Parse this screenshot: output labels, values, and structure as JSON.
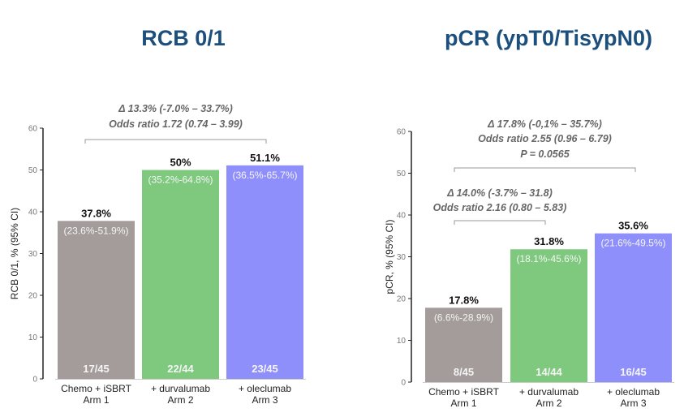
{
  "colors": {
    "title": "#1d4f7d",
    "arm1": "#a49b9b",
    "arm2": "#7fc97f",
    "arm3": "#8f8ffb"
  },
  "chart_data": [
    {
      "type": "bar",
      "title": "RCB 0/1",
      "ylabel": "RCB 0/1, % (95% CI)",
      "ylim": [
        0,
        60
      ],
      "yticks": [
        "0",
        "10",
        "20",
        "30",
        "40",
        "50",
        "60"
      ],
      "categories": [
        [
          "Chemo + iSBRT",
          "Arm 1"
        ],
        [
          "+ durvalumab",
          "Arm 2"
        ],
        [
          "+ oleclumab",
          "Arm 3"
        ]
      ],
      "values": [
        37.8,
        50,
        51.1
      ],
      "value_labels": [
        "37.8%",
        "50%",
        "51.1%"
      ],
      "ci_labels": [
        "(23.6%-51.9%)",
        "(35.2%-64.8%)",
        "(36.5%-65.7%)"
      ],
      "n_labels": [
        "17/45",
        "22/44",
        "23/45"
      ],
      "annotations": [
        {
          "from": 0,
          "to": 2,
          "lines": [
            "Δ 13.3% (-7.0% – 33.7%)",
            "Odds ratio 1.72 (0.74 – 3.99)"
          ]
        }
      ],
      "grid": false
    },
    {
      "type": "bar",
      "title": "pCR (ypT0/TisypN0)",
      "ylabel": "pCR, % (95% CI)",
      "ylim": [
        0,
        60
      ],
      "yticks": [
        "0",
        "10",
        "20",
        "30",
        "40",
        "50",
        "60"
      ],
      "categories": [
        [
          "Chemo + iSBRT",
          "Arm 1"
        ],
        [
          "+ durvalumab",
          "Arm 2"
        ],
        [
          "+ oleclumab",
          "Arm 3"
        ]
      ],
      "values": [
        17.8,
        31.8,
        35.6
      ],
      "value_labels": [
        "17.8%",
        "31.8%",
        "35.6%"
      ],
      "ci_labels": [
        "(6.6%-28.9%)",
        "(18.1%-45.6%)",
        "(21.6%-49.5%)"
      ],
      "n_labels": [
        "8/45",
        "14/44",
        "16/45"
      ],
      "annotations": [
        {
          "from": 0,
          "to": 2,
          "lines": [
            "Δ 17.8% (-0,1% – 35.7%)",
            "Odds ratio 2.55 (0.96 – 6.79)",
            "P = 0.0565"
          ]
        },
        {
          "from": 0,
          "to": 1,
          "lines": [
            "Δ 14.0% (-3.7% – 31.8)",
            "Odds ratio 2.16 (0.80 – 5.83)"
          ]
        }
      ],
      "grid": false
    }
  ]
}
